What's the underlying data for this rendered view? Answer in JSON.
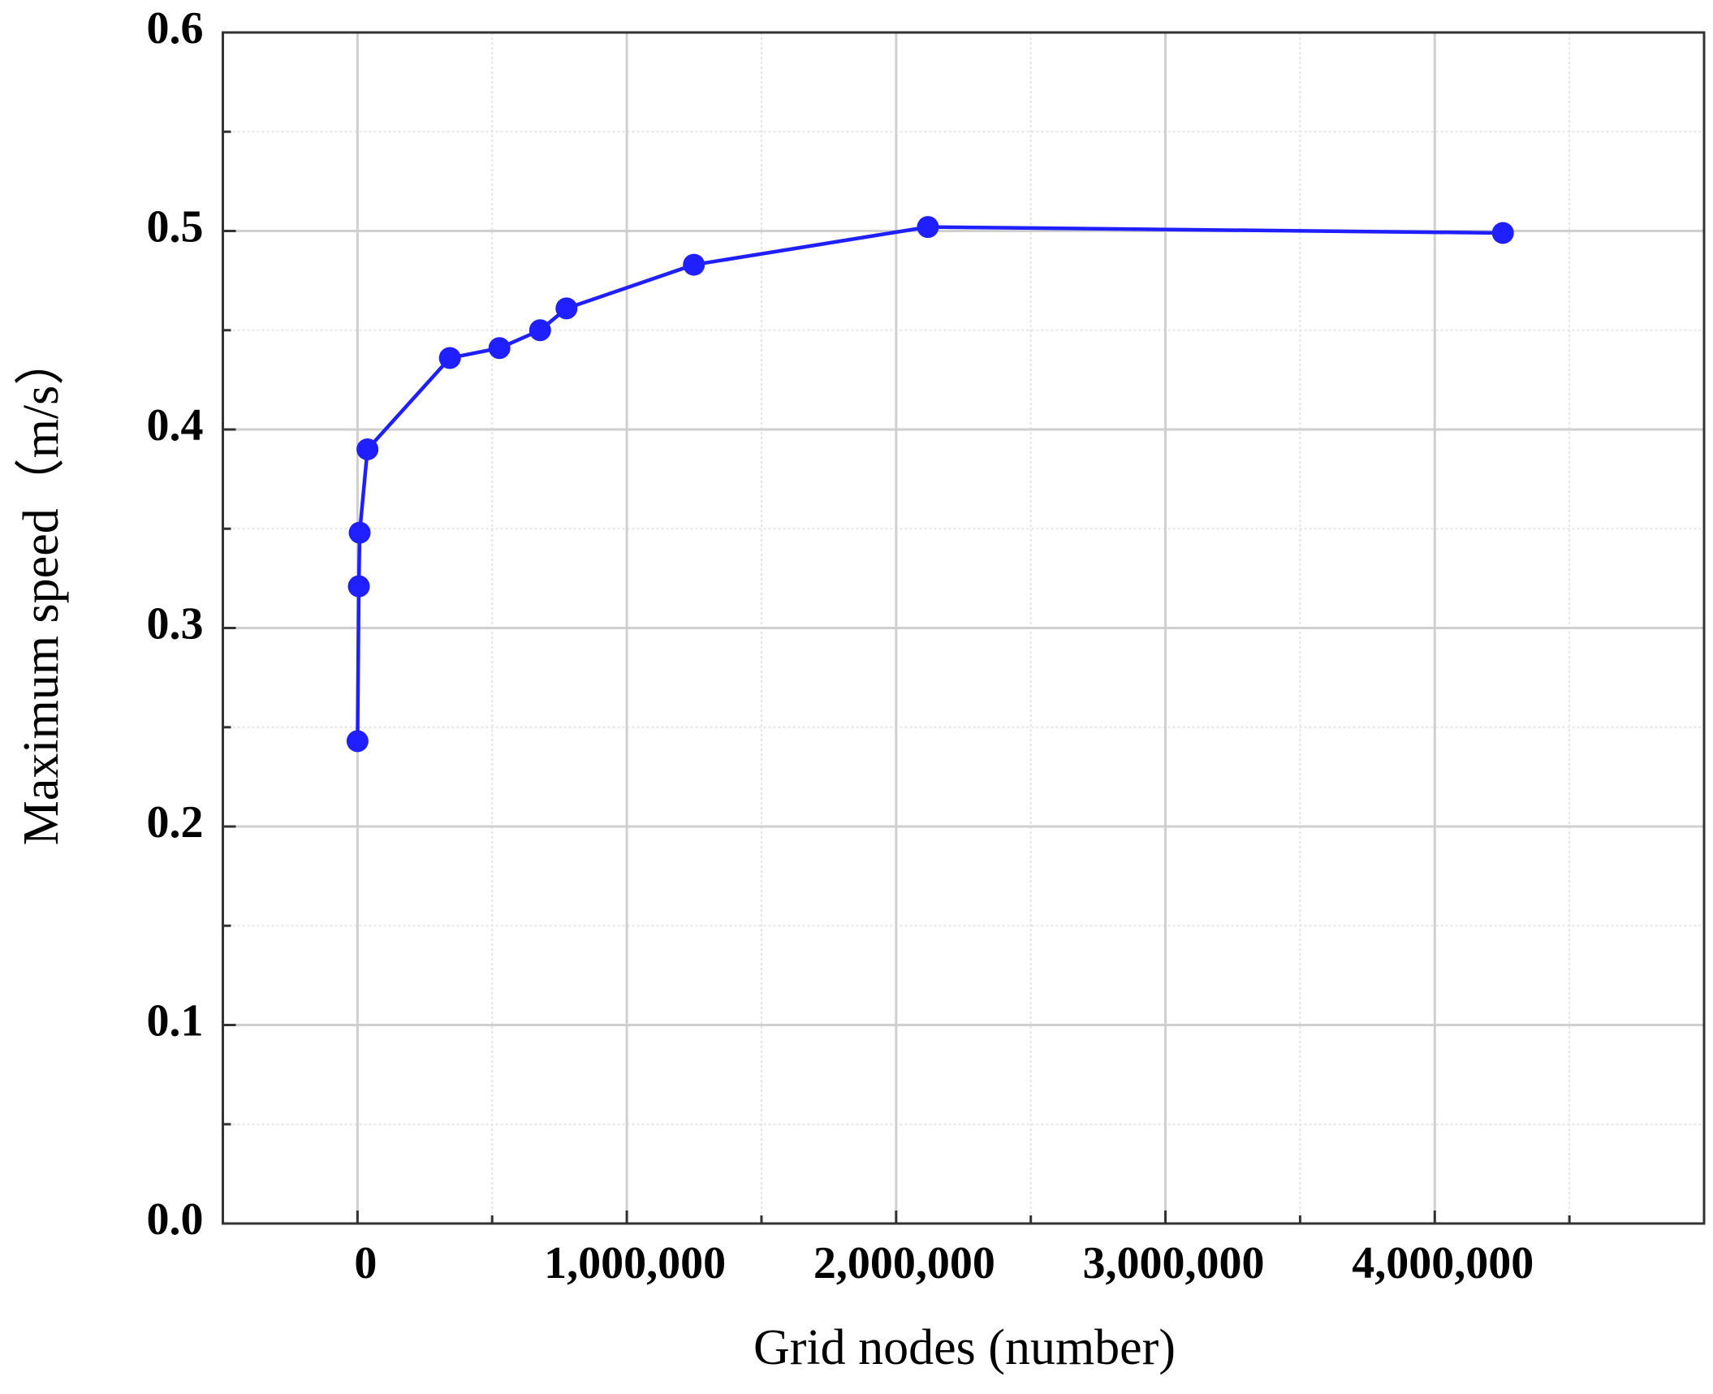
{
  "chart_data": {
    "type": "line",
    "x_label": "Grid nodes (number)",
    "y_label": "Maximum speed（m/s）",
    "series": [
      {
        "color": "#1f1fff",
        "x": [
          0,
          5000,
          8000,
          37000,
          343000,
          527000,
          678000,
          776000,
          1249000,
          2118000,
          4253000
        ],
        "values": [
          0.243,
          0.321,
          0.348,
          0.39,
          0.436,
          0.441,
          0.45,
          0.461,
          0.483,
          0.502,
          0.499
        ]
      }
    ],
    "xlim": [
      -500000,
      5000000
    ],
    "ylim": [
      0,
      0.6
    ],
    "xticks": [
      0,
      {
        "value": 1000000,
        "label": "1,000,000"
      },
      {
        "value": 2000000,
        "label": "2,000,000"
      },
      {
        "value": 3000000,
        "label": "3,000,000"
      },
      {
        "value": 4000000,
        "label": "4,000,000"
      }
    ],
    "yticks": [
      {
        "value": 0,
        "label": "0.0"
      },
      0.1,
      0.2,
      0.3,
      0.4,
      0.5,
      0.6
    ],
    "minor_xticks": [
      500000,
      1500000,
      2500000,
      3500000,
      4500000
    ],
    "minor_yticks": [
      0.05,
      0.15,
      0.25,
      0.35,
      0.45,
      0.55
    ],
    "grid": true
  }
}
